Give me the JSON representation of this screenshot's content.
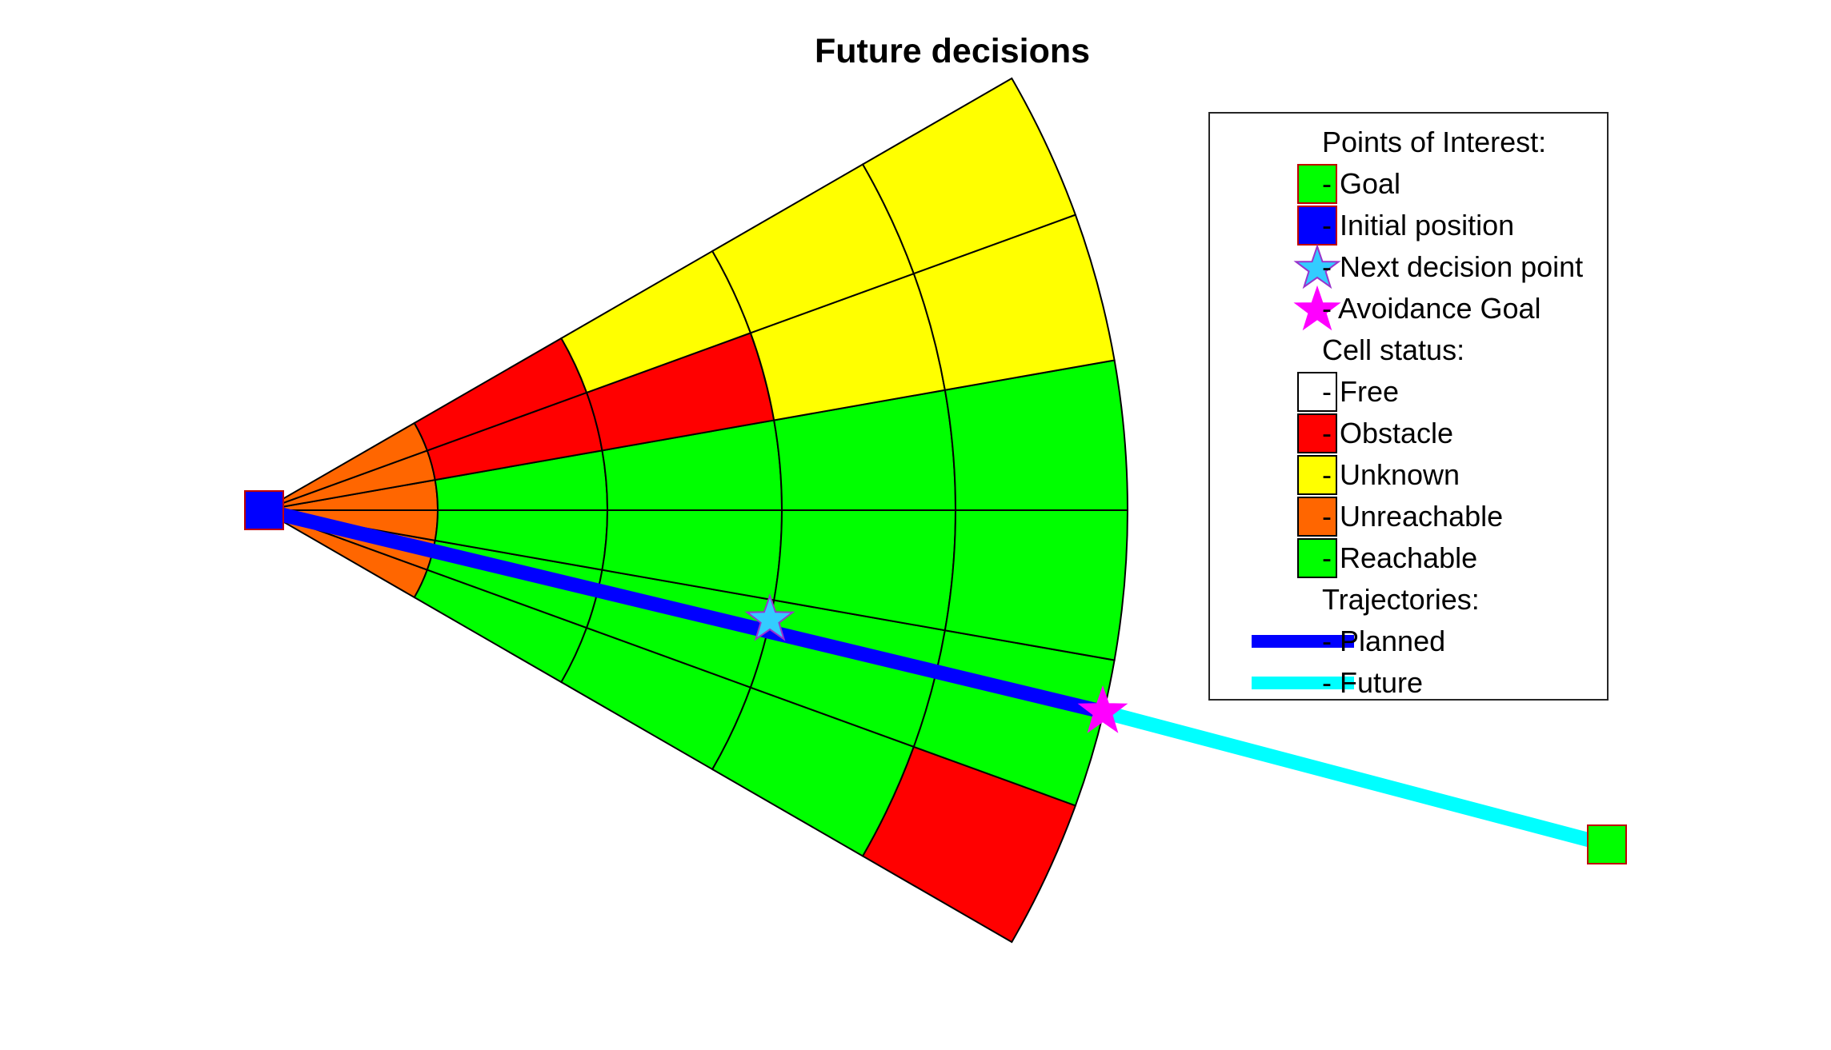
{
  "figure": {
    "title": "Future decisions"
  },
  "colors": {
    "free": "#ffffff",
    "obstacle": "#ff0000",
    "unknown": "#ffff00",
    "unreachable": "#ff6600",
    "reachable": "#00ff00",
    "planned": "#0000ff",
    "future": "#00ffff",
    "next_decision": "#33ccff",
    "avoidance_goal": "#ff00ff",
    "goal": "#00ff00",
    "initial": "#0000ff"
  },
  "grid": {
    "angular_sectors": 6,
    "radial_rings": 5,
    "cells": [
      [
        "unreachable",
        "green",
        "green",
        "green",
        "obstacle"
      ],
      [
        "unreachable",
        "green",
        "green",
        "green",
        "green"
      ],
      [
        "unreachable",
        "green",
        "green",
        "green",
        "green"
      ],
      [
        "unreachable",
        "green",
        "green",
        "green",
        "green"
      ],
      [
        "unreachable",
        "obstacle",
        "obstacle",
        "unknown",
        "unknown"
      ],
      [
        "unreachable",
        "obstacle",
        "unknown",
        "unknown",
        "unknown"
      ]
    ]
  },
  "legend": {
    "items": [
      {
        "symbol": "none",
        "label": "Points of Interest:"
      },
      {
        "symbol": "goal-square",
        "label": "- Goal"
      },
      {
        "symbol": "initial-square",
        "label": "- Initial position"
      },
      {
        "symbol": "cyan-star",
        "label": "- Next decision point"
      },
      {
        "symbol": "magenta-star",
        "label": "- Avoidance Goal"
      },
      {
        "symbol": "none",
        "label": "Cell status:"
      },
      {
        "symbol": "free-box",
        "label": "- Free"
      },
      {
        "symbol": "obstacle-box",
        "label": "- Obstacle"
      },
      {
        "symbol": "unknown-box",
        "label": "- Unknown"
      },
      {
        "symbol": "unreachable-box",
        "label": "- Unreachable"
      },
      {
        "symbol": "reachable-box",
        "label": "- Reachable"
      },
      {
        "symbol": "none",
        "label": "Trajectories:"
      },
      {
        "symbol": "planned-line",
        "label": "- Planned"
      },
      {
        "symbol": "future-line",
        "label": "- Future"
      }
    ]
  }
}
